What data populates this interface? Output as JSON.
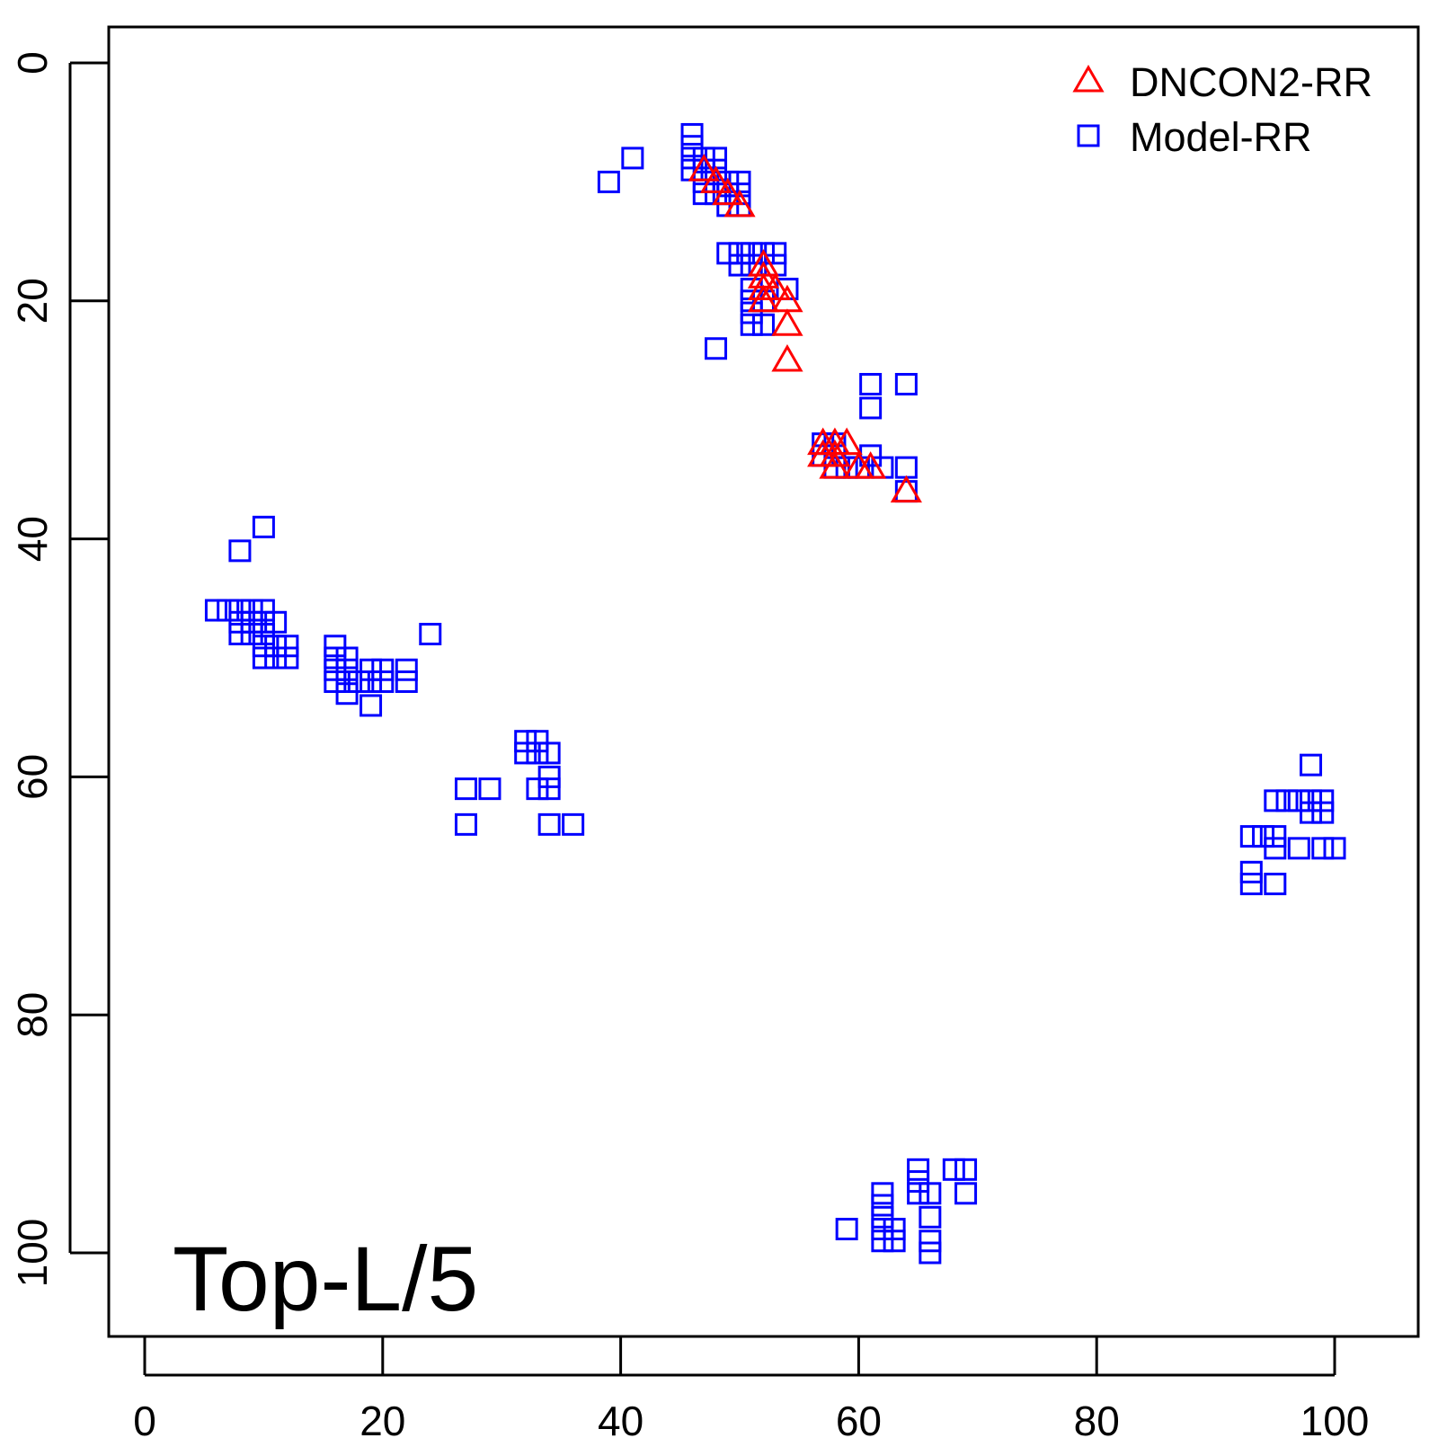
{
  "chart_data": {
    "type": "scatter",
    "title": "",
    "annotation": "Top-L/5",
    "xlabel": "",
    "ylabel": "",
    "xlim": [
      0,
      105
    ],
    "ylim": [
      105,
      0
    ],
    "y_reversed": true,
    "x_ticks": [
      "0",
      "20",
      "40",
      "60",
      "80",
      "100"
    ],
    "y_ticks": [
      "0",
      "20",
      "40",
      "60",
      "80",
      "100"
    ],
    "grid": false,
    "legend": {
      "placement": "top-right",
      "entries": [
        "DNCON2-RR",
        "Model-RR"
      ]
    },
    "colors": {
      "DNCON2-RR": "#ff0000",
      "Model-RR": "#0000ff"
    },
    "series": [
      {
        "name": "Model-RR",
        "marker": "square",
        "points": [
          [
            39,
            10
          ],
          [
            41,
            8
          ],
          [
            46,
            6
          ],
          [
            46,
            7
          ],
          [
            46,
            8
          ],
          [
            46,
            9
          ],
          [
            47,
            8
          ],
          [
            47,
            9
          ],
          [
            47,
            10
          ],
          [
            47,
            11
          ],
          [
            48,
            8
          ],
          [
            48,
            9
          ],
          [
            48,
            10
          ],
          [
            48,
            11
          ],
          [
            49,
            10
          ],
          [
            49,
            11
          ],
          [
            49,
            12
          ],
          [
            50,
            10
          ],
          [
            50,
            11
          ],
          [
            50,
            12
          ],
          [
            49,
            16
          ],
          [
            50,
            16
          ],
          [
            51,
            16
          ],
          [
            52,
            16
          ],
          [
            53,
            16
          ],
          [
            50,
            17
          ],
          [
            51,
            17
          ],
          [
            53,
            17
          ],
          [
            54,
            19
          ],
          [
            51,
            19
          ],
          [
            51,
            20
          ],
          [
            51,
            21
          ],
          [
            51,
            22
          ],
          [
            52,
            22
          ],
          [
            52,
            20
          ],
          [
            48,
            24
          ],
          [
            61,
            27
          ],
          [
            64,
            27
          ],
          [
            61,
            29
          ],
          [
            57,
            32
          ],
          [
            58,
            32
          ],
          [
            57,
            33
          ],
          [
            58,
            33
          ],
          [
            58,
            34
          ],
          [
            59,
            34
          ],
          [
            60,
            34
          ],
          [
            61,
            33
          ],
          [
            62,
            34
          ],
          [
            64,
            34
          ],
          [
            64,
            36
          ],
          [
            8,
            41
          ],
          [
            10,
            39
          ],
          [
            6,
            46
          ],
          [
            7,
            46
          ],
          [
            8,
            46
          ],
          [
            9,
            46
          ],
          [
            10,
            46
          ],
          [
            8,
            47
          ],
          [
            9,
            47
          ],
          [
            10,
            47
          ],
          [
            11,
            47
          ],
          [
            8,
            48
          ],
          [
            9,
            48
          ],
          [
            10,
            48
          ],
          [
            10,
            49
          ],
          [
            11,
            49
          ],
          [
            12,
            49
          ],
          [
            10,
            50
          ],
          [
            11,
            50
          ],
          [
            12,
            50
          ],
          [
            24,
            48
          ],
          [
            16,
            49
          ],
          [
            16,
            50
          ],
          [
            16,
            51
          ],
          [
            16,
            52
          ],
          [
            17,
            50
          ],
          [
            17,
            51
          ],
          [
            17,
            52
          ],
          [
            17,
            53
          ],
          [
            18,
            52
          ],
          [
            19,
            51
          ],
          [
            19,
            52
          ],
          [
            19,
            54
          ],
          [
            20,
            51
          ],
          [
            20,
            52
          ],
          [
            22,
            51
          ],
          [
            22,
            52
          ],
          [
            32,
            57
          ],
          [
            33,
            57
          ],
          [
            32,
            58
          ],
          [
            33,
            58
          ],
          [
            34,
            58
          ],
          [
            34,
            60
          ],
          [
            33,
            61
          ],
          [
            34,
            61
          ],
          [
            27,
            61
          ],
          [
            29,
            61
          ],
          [
            27,
            64
          ],
          [
            34,
            64
          ],
          [
            36,
            64
          ],
          [
            98,
            59
          ],
          [
            95,
            62
          ],
          [
            96,
            62
          ],
          [
            97,
            62
          ],
          [
            98,
            62
          ],
          [
            99,
            62
          ],
          [
            98,
            63
          ],
          [
            99,
            63
          ],
          [
            93,
            65
          ],
          [
            94,
            65
          ],
          [
            95,
            65
          ],
          [
            95,
            66
          ],
          [
            97,
            66
          ],
          [
            99,
            66
          ],
          [
            100,
            66
          ],
          [
            93,
            68
          ],
          [
            93,
            69
          ],
          [
            95,
            69
          ],
          [
            65,
            93
          ],
          [
            65,
            94
          ],
          [
            65,
            95
          ],
          [
            68,
            93
          ],
          [
            69,
            93
          ],
          [
            66,
            95
          ],
          [
            69,
            95
          ],
          [
            62,
            95
          ],
          [
            62,
            96
          ],
          [
            62,
            97
          ],
          [
            62,
            98
          ],
          [
            62,
            99
          ],
          [
            63,
            98
          ],
          [
            63,
            99
          ],
          [
            66,
            97
          ],
          [
            66,
            99
          ],
          [
            66,
            100
          ],
          [
            59,
            98
          ]
        ]
      },
      {
        "name": "DNCON2-RR",
        "marker": "triangle",
        "points": [
          [
            47,
            9
          ],
          [
            48,
            10
          ],
          [
            49,
            11
          ],
          [
            50,
            12
          ],
          [
            52,
            17
          ],
          [
            52,
            18
          ],
          [
            52,
            19
          ],
          [
            52,
            20
          ],
          [
            53,
            19
          ],
          [
            54,
            20
          ],
          [
            54,
            22
          ],
          [
            54,
            25
          ],
          [
            57,
            32
          ],
          [
            58,
            32
          ],
          [
            59,
            32
          ],
          [
            57,
            33
          ],
          [
            58,
            33
          ],
          [
            58,
            34
          ],
          [
            60,
            34
          ],
          [
            61,
            34
          ],
          [
            64,
            36
          ]
        ]
      }
    ]
  }
}
